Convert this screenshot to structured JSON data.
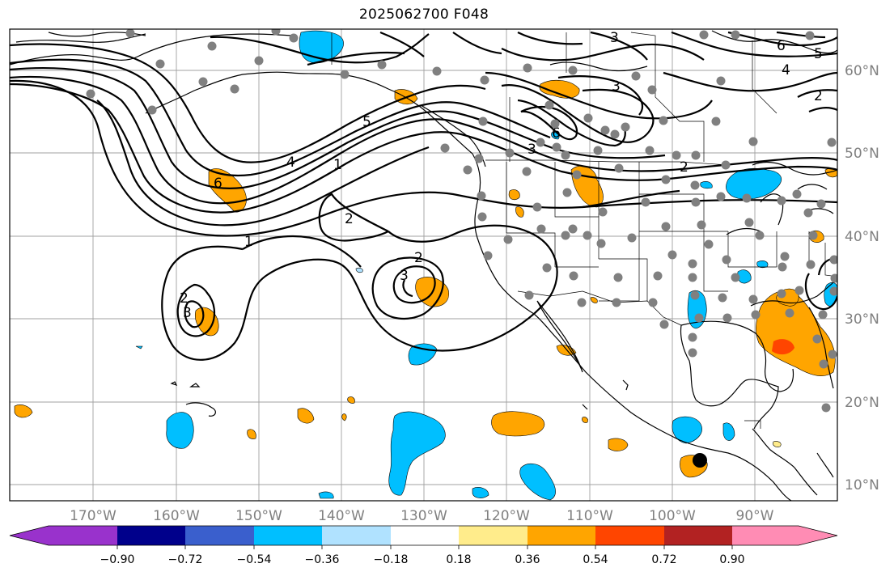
{
  "title": "2025062700 F048",
  "map": {
    "lon_labels": [
      "170°W",
      "160°W",
      "150°W",
      "140°W",
      "130°W",
      "120°W",
      "110°W",
      "100°W",
      "90°W"
    ],
    "lat_labels": [
      "60°N",
      "50°N",
      "40°N",
      "30°N",
      "20°N",
      "10°N"
    ],
    "contour_labels": [
      "1",
      "1",
      "2",
      "2",
      "2",
      "2",
      "3",
      "3",
      "3",
      "3",
      "3",
      "4",
      "4",
      "5",
      "5",
      "6",
      "6",
      "6",
      "2"
    ]
  },
  "colorbar": {
    "tick_labels": [
      "−0.90",
      "−0.72",
      "−0.54",
      "−0.36",
      "−0.18",
      "0.18",
      "0.36",
      "0.54",
      "0.72",
      "0.90"
    ],
    "colors": [
      "#9932cc",
      "#00008b",
      "#3a5fcd",
      "#00bfff",
      "#b0e2ff",
      "#ffffff",
      "#ffec8b",
      "#ffa500",
      "#ff4500",
      "#b22222",
      "#ff8cb4"
    ]
  },
  "legend_colors": {
    "positive": "#ffa500",
    "strong_positive": "#ff4500",
    "negative": "#00bfff",
    "station": "#808080",
    "contour": "#000000"
  }
}
